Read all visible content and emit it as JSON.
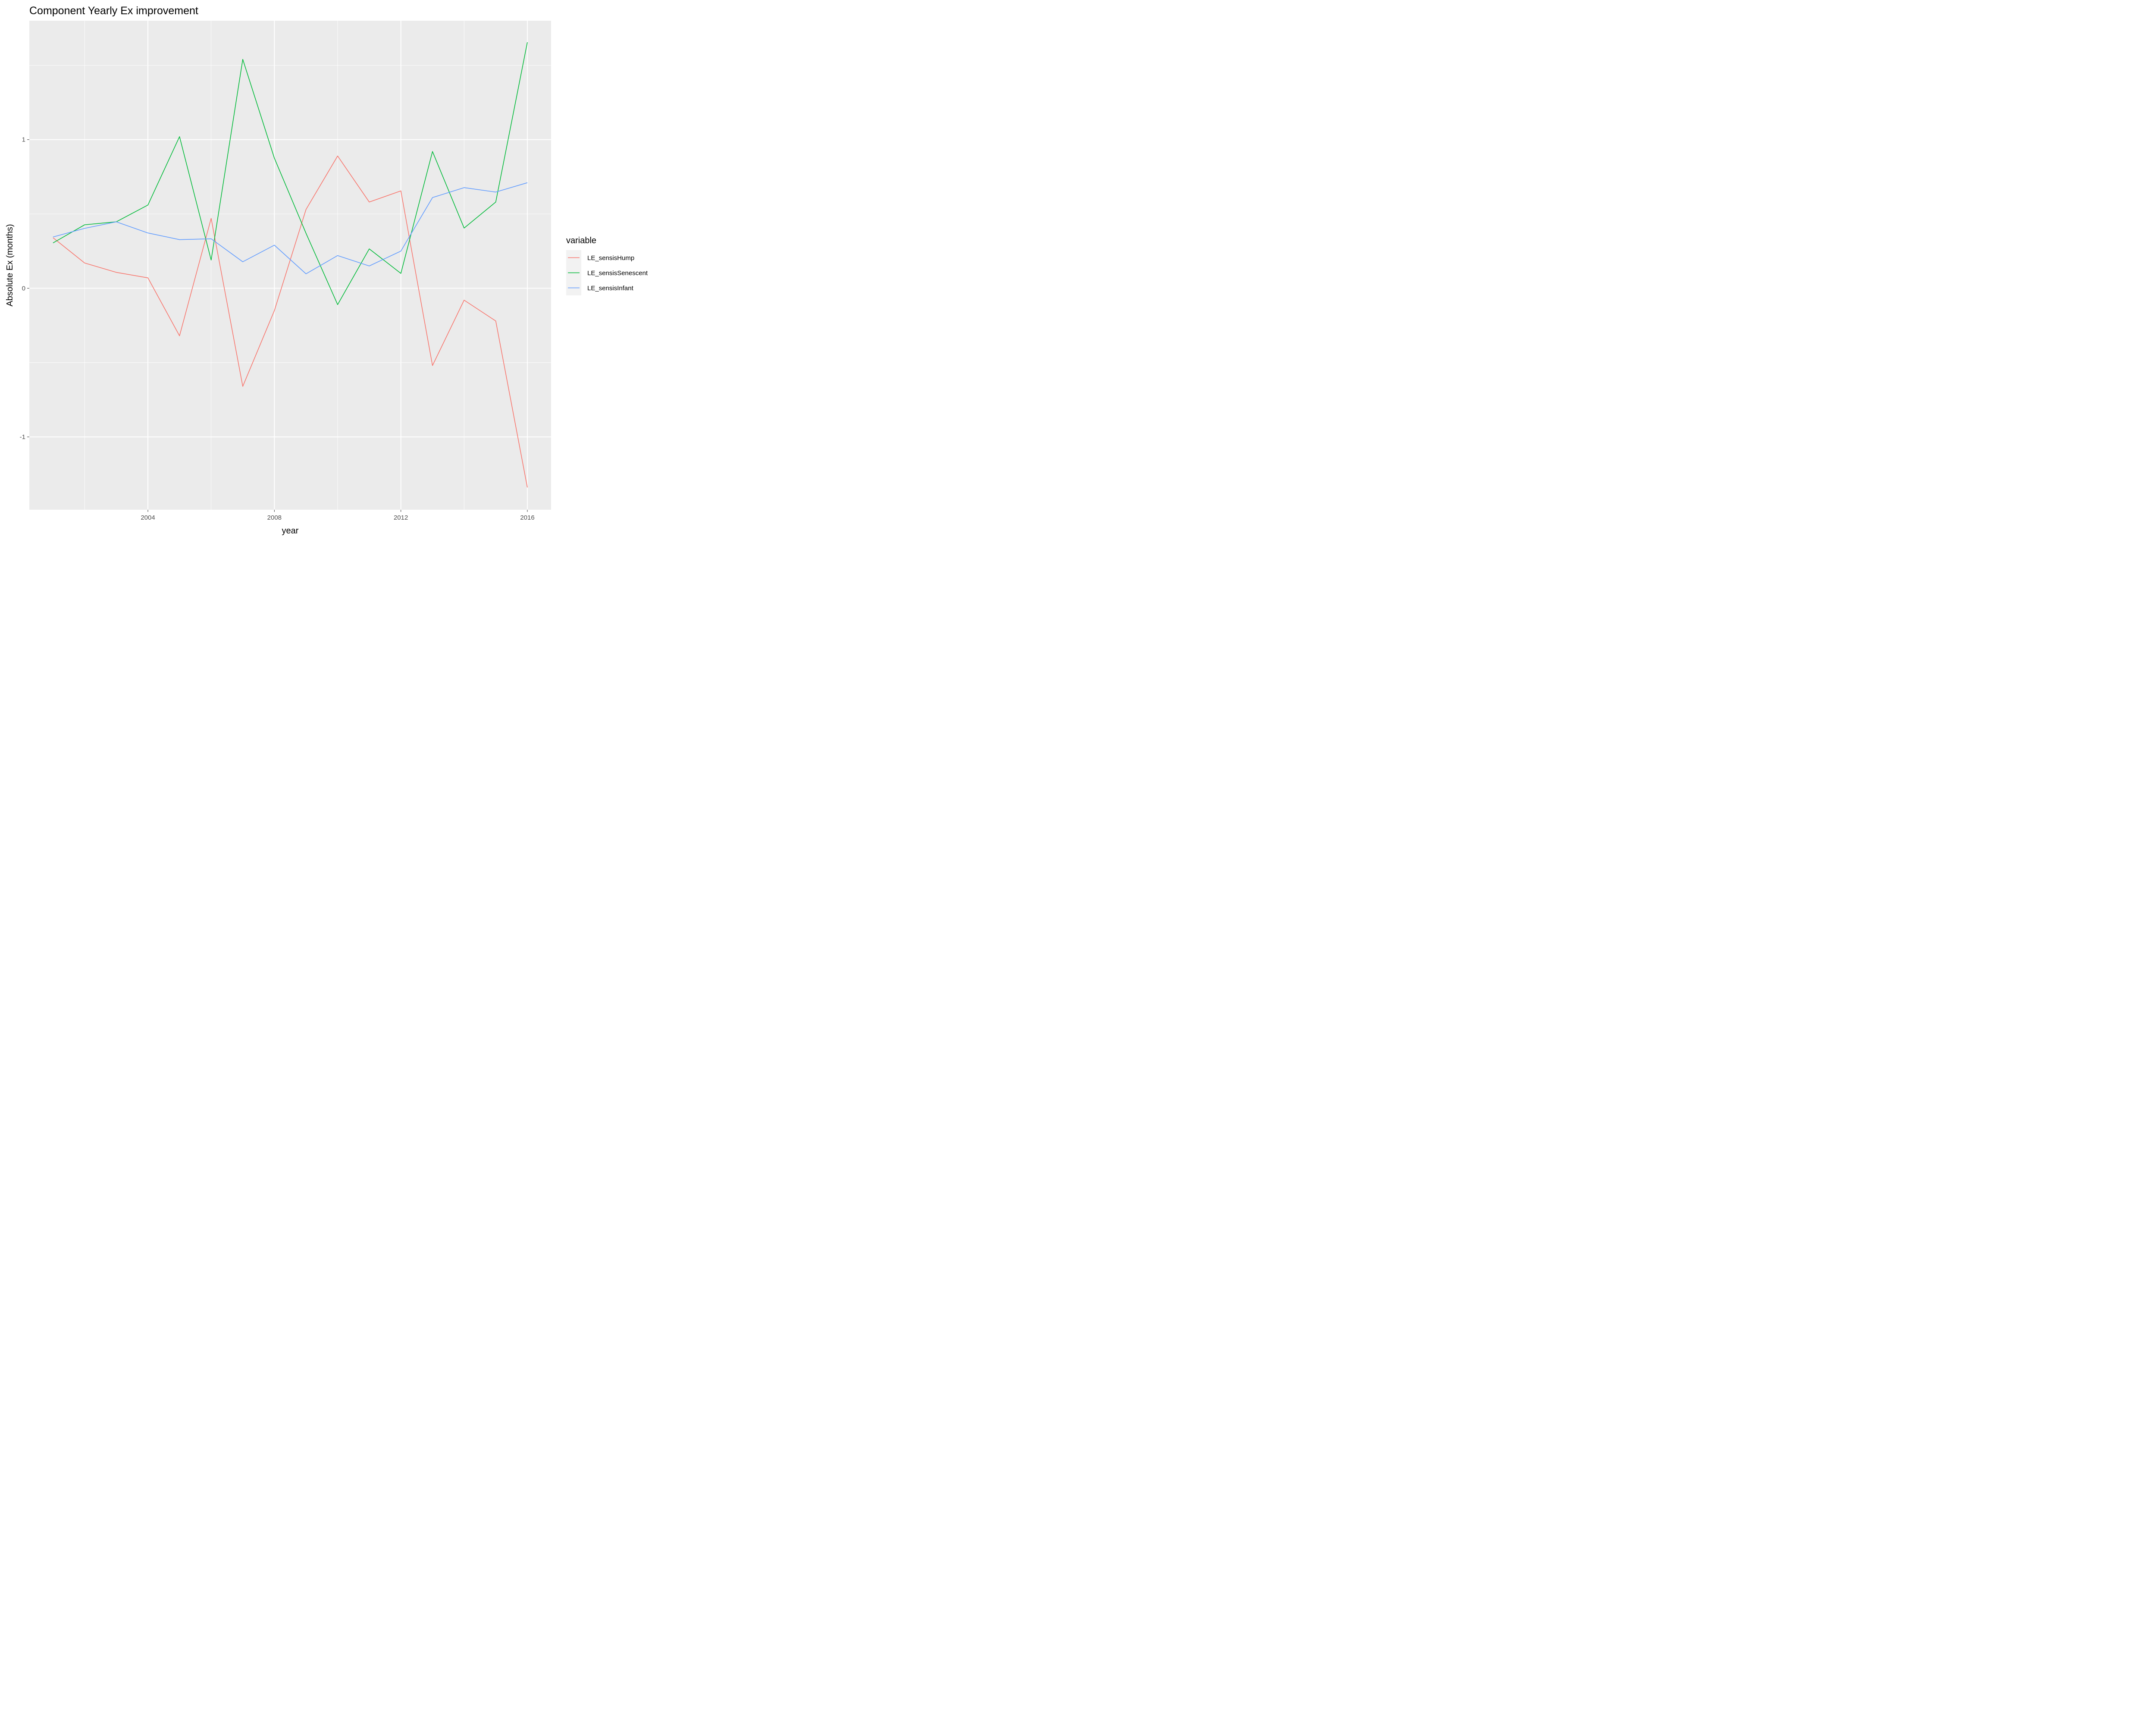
{
  "chart_data": {
    "type": "line",
    "title": "Component Yearly Ex improvement",
    "xlabel": "year",
    "ylabel": "Absolute Ex (months)",
    "x": [
      2001,
      2002,
      2003,
      2004,
      2005,
      2006,
      2007,
      2008,
      2009,
      2010,
      2011,
      2012,
      2013,
      2014,
      2015,
      2016
    ],
    "xlim": [
      2000.25,
      2016.75
    ],
    "ylim": [
      -1.49,
      1.8
    ],
    "x_ticks": [
      2004,
      2008,
      2012,
      2016
    ],
    "x_minor_ticks": [
      2002,
      2006,
      2010,
      2014
    ],
    "y_ticks": [
      -1,
      0,
      1
    ],
    "y_minor_ticks": [
      -0.5,
      0.5,
      1.5
    ],
    "x_tick_labels": [
      "2004",
      "2008",
      "2012",
      "2016"
    ],
    "y_tick_labels": [
      "-1",
      "0",
      "1"
    ],
    "grid": true,
    "legend": {
      "title": "variable",
      "position": "right"
    },
    "colors": {
      "panel_background": "#EBEBEB",
      "grid": "#FFFFFF",
      "tick_text": "#4D4D4D",
      "axis_tick": "#333333"
    },
    "series": [
      {
        "name": "LE_sensisHump",
        "color": "#F8766D",
        "values": [
          0.34,
          0.17,
          0.107,
          0.07,
          -0.32,
          0.47,
          -0.66,
          -0.15,
          0.53,
          0.89,
          0.58,
          0.655,
          -0.52,
          -0.08,
          -0.22,
          -1.34
        ]
      },
      {
        "name": "LE_sensisSenescent",
        "color": "#00BA38",
        "values": [
          0.305,
          0.427,
          0.447,
          0.56,
          1.02,
          0.19,
          1.54,
          0.875,
          0.37,
          -0.11,
          0.265,
          0.1,
          0.92,
          0.405,
          0.58,
          1.655
        ]
      },
      {
        "name": "LE_sensisInfant",
        "color": "#619CFF",
        "values": [
          0.345,
          0.403,
          0.447,
          0.372,
          0.327,
          0.333,
          0.178,
          0.29,
          0.097,
          0.22,
          0.15,
          0.25,
          0.61,
          0.677,
          0.647,
          0.71
        ]
      }
    ]
  }
}
